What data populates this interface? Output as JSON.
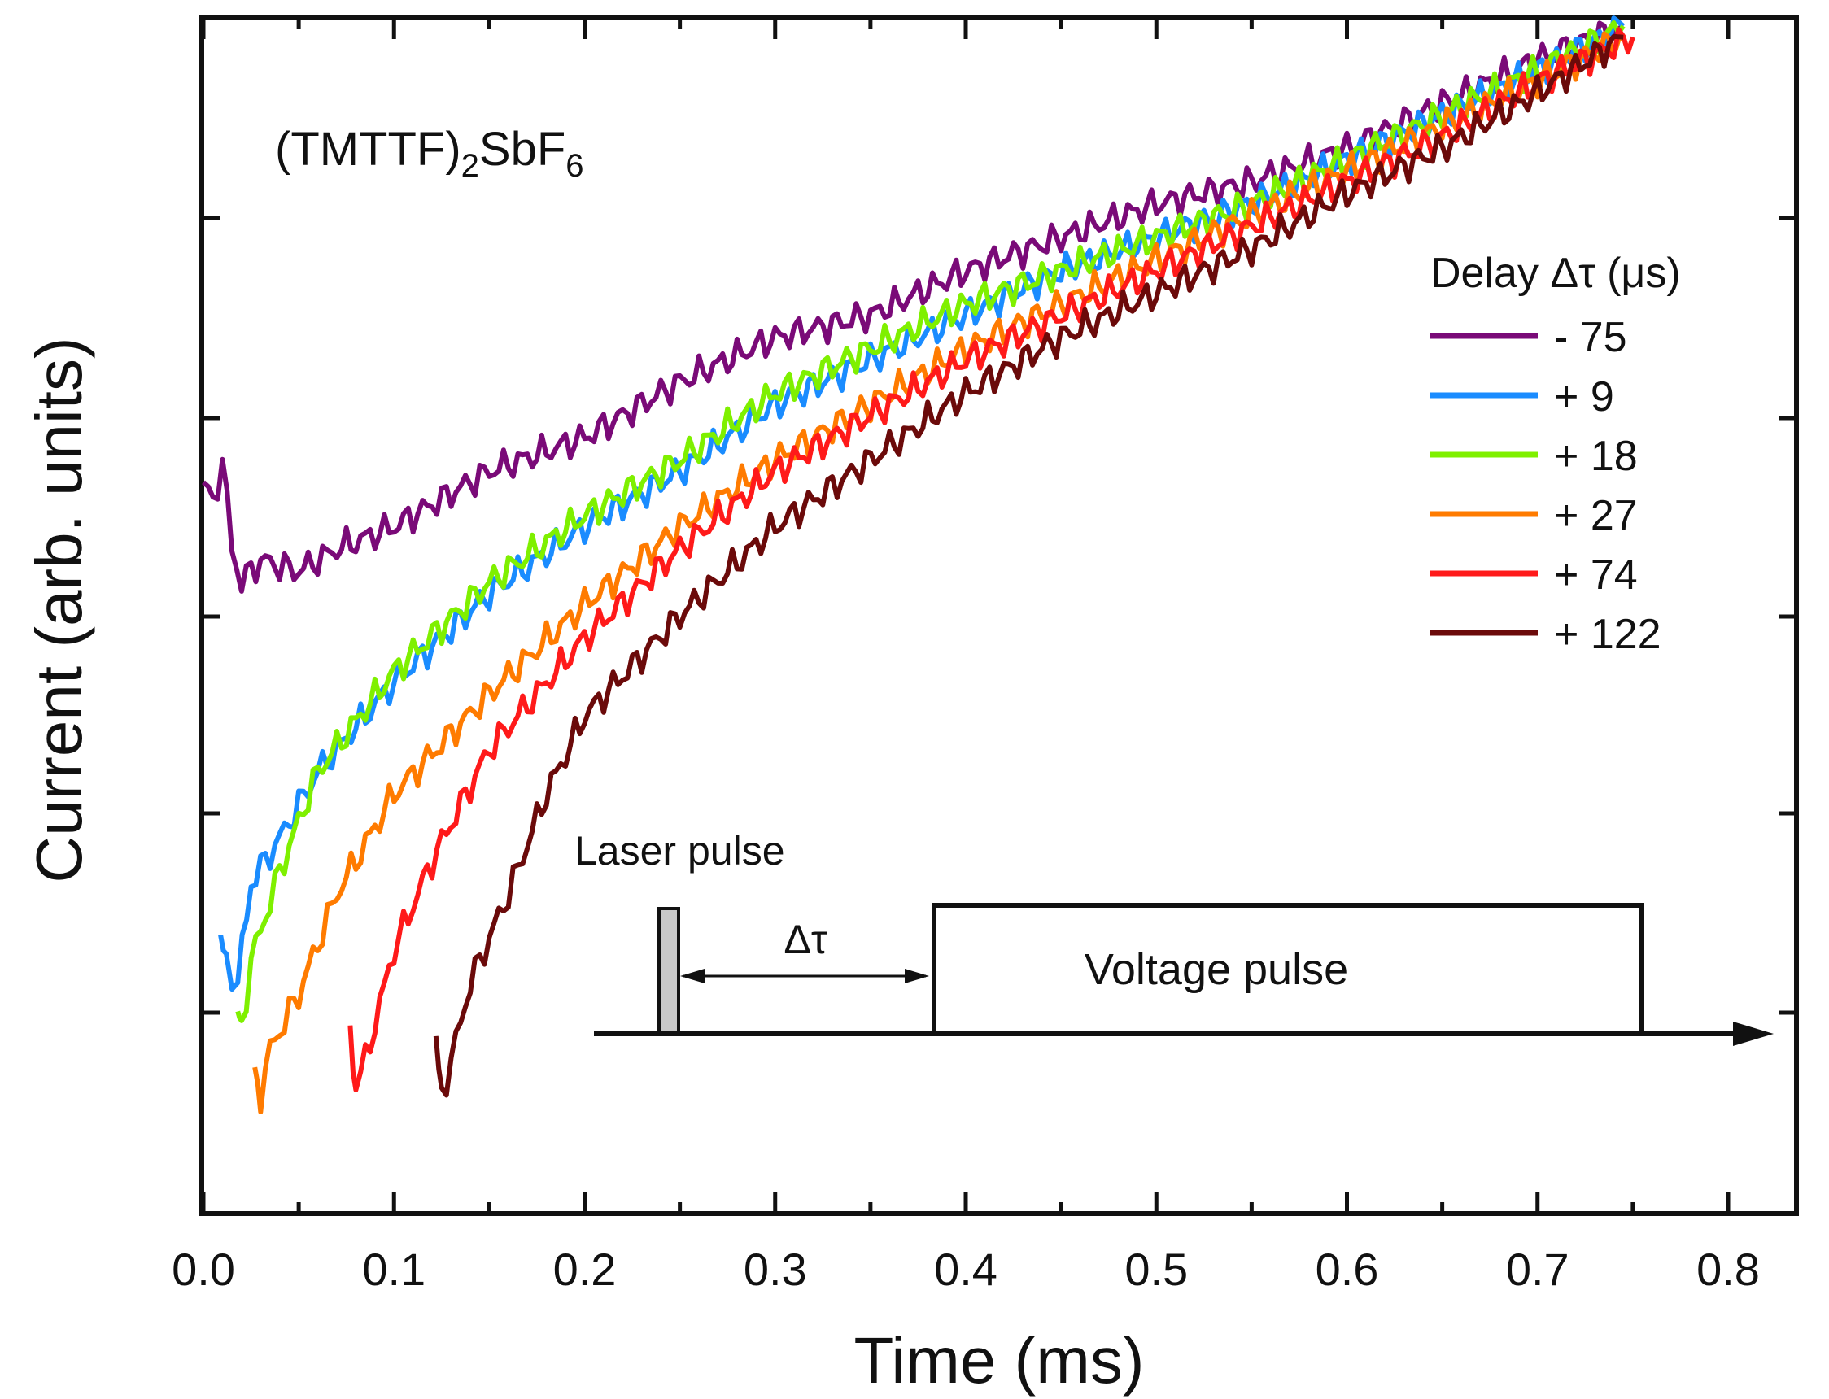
{
  "chart_data": {
    "type": "line",
    "title": "",
    "xlabel": "Time (ms)",
    "ylabel": "Current (arb. units)",
    "xlim": [
      0.0,
      0.85
    ],
    "ylim": [
      0.0,
      1.0
    ],
    "y_tick_labels_shown": false,
    "x_ticks": [
      "0.0",
      "0.1",
      "0.2",
      "0.3",
      "0.4",
      "0.5",
      "0.6",
      "0.7",
      "0.8"
    ],
    "sample_label": {
      "main": "(TMTTF)",
      "sub1": "2",
      "mid": "SbF",
      "sub2": "6"
    },
    "legend": {
      "title": "Delay Δτ (μs)",
      "position": "right"
    },
    "series": [
      {
        "name": "- 75",
        "color": "#7a0a78",
        "points": [
          [
            0.0,
            0.59
          ],
          [
            0.005,
            0.57
          ],
          [
            0.01,
            0.61
          ],
          [
            0.015,
            0.53
          ],
          [
            0.02,
            0.5
          ],
          [
            0.03,
            0.52
          ],
          [
            0.05,
            0.51
          ],
          [
            0.07,
            0.53
          ],
          [
            0.1,
            0.55
          ],
          [
            0.15,
            0.6
          ],
          [
            0.2,
            0.63
          ],
          [
            0.25,
            0.68
          ],
          [
            0.3,
            0.72
          ],
          [
            0.35,
            0.74
          ],
          [
            0.4,
            0.78
          ],
          [
            0.45,
            0.81
          ],
          [
            0.5,
            0.84
          ],
          [
            0.55,
            0.86
          ],
          [
            0.6,
            0.89
          ],
          [
            0.65,
            0.93
          ],
          [
            0.7,
            0.97
          ],
          [
            0.745,
            1.0
          ]
        ]
      },
      {
        "name": "+ 9",
        "color": "#1a8cff",
        "points": [
          [
            0.009,
            0.17
          ],
          [
            0.012,
            0.16
          ],
          [
            0.018,
            0.14
          ],
          [
            0.025,
            0.23
          ],
          [
            0.04,
            0.27
          ],
          [
            0.06,
            0.33
          ],
          [
            0.1,
            0.41
          ],
          [
            0.15,
            0.49
          ],
          [
            0.2,
            0.55
          ],
          [
            0.25,
            0.6
          ],
          [
            0.3,
            0.66
          ],
          [
            0.35,
            0.7
          ],
          [
            0.4,
            0.74
          ],
          [
            0.45,
            0.78
          ],
          [
            0.5,
            0.81
          ],
          [
            0.55,
            0.84
          ],
          [
            0.6,
            0.88
          ],
          [
            0.65,
            0.92
          ],
          [
            0.7,
            0.96
          ],
          [
            0.745,
            1.0
          ]
        ]
      },
      {
        "name": "+ 18",
        "color": "#7ff000",
        "points": [
          [
            0.018,
            0.11
          ],
          [
            0.02,
            0.1
          ],
          [
            0.025,
            0.16
          ],
          [
            0.04,
            0.24
          ],
          [
            0.06,
            0.33
          ],
          [
            0.1,
            0.42
          ],
          [
            0.15,
            0.5
          ],
          [
            0.2,
            0.56
          ],
          [
            0.25,
            0.61
          ],
          [
            0.3,
            0.67
          ],
          [
            0.35,
            0.71
          ],
          [
            0.4,
            0.75
          ],
          [
            0.45,
            0.78
          ],
          [
            0.5,
            0.81
          ],
          [
            0.55,
            0.84
          ],
          [
            0.6,
            0.88
          ],
          [
            0.65,
            0.92
          ],
          [
            0.7,
            0.96
          ],
          [
            0.745,
            1.0
          ]
        ]
      },
      {
        "name": "+ 27",
        "color": "#ff7b00",
        "points": [
          [
            0.027,
            0.06
          ],
          [
            0.03,
            0.04
          ],
          [
            0.035,
            0.08
          ],
          [
            0.05,
            0.13
          ],
          [
            0.07,
            0.22
          ],
          [
            0.1,
            0.31
          ],
          [
            0.15,
            0.4
          ],
          [
            0.2,
            0.48
          ],
          [
            0.25,
            0.55
          ],
          [
            0.3,
            0.61
          ],
          [
            0.35,
            0.66
          ],
          [
            0.4,
            0.71
          ],
          [
            0.45,
            0.75
          ],
          [
            0.5,
            0.79
          ],
          [
            0.55,
            0.83
          ],
          [
            0.6,
            0.87
          ],
          [
            0.65,
            0.91
          ],
          [
            0.7,
            0.95
          ],
          [
            0.745,
            0.99
          ]
        ]
      },
      {
        "name": "+ 74",
        "color": "#ff1a1a",
        "points": [
          [
            0.077,
            0.1
          ],
          [
            0.08,
            0.05
          ],
          [
            0.085,
            0.07
          ],
          [
            0.1,
            0.17
          ],
          [
            0.12,
            0.25
          ],
          [
            0.15,
            0.35
          ],
          [
            0.2,
            0.45
          ],
          [
            0.25,
            0.53
          ],
          [
            0.3,
            0.6
          ],
          [
            0.35,
            0.65
          ],
          [
            0.4,
            0.7
          ],
          [
            0.45,
            0.74
          ],
          [
            0.5,
            0.78
          ],
          [
            0.55,
            0.82
          ],
          [
            0.6,
            0.86
          ],
          [
            0.65,
            0.9
          ],
          [
            0.7,
            0.95
          ],
          [
            0.75,
            0.99
          ]
        ]
      },
      {
        "name": "+ 122",
        "color": "#6b0a0a",
        "points": [
          [
            0.122,
            0.08
          ],
          [
            0.125,
            0.04
          ],
          [
            0.13,
            0.07
          ],
          [
            0.14,
            0.14
          ],
          [
            0.16,
            0.22
          ],
          [
            0.18,
            0.31
          ],
          [
            0.2,
            0.38
          ],
          [
            0.25,
            0.47
          ],
          [
            0.3,
            0.55
          ],
          [
            0.35,
            0.61
          ],
          [
            0.4,
            0.67
          ],
          [
            0.45,
            0.72
          ],
          [
            0.5,
            0.76
          ],
          [
            0.55,
            0.8
          ],
          [
            0.6,
            0.85
          ],
          [
            0.65,
            0.89
          ],
          [
            0.7,
            0.94
          ],
          [
            0.745,
            0.99
          ]
        ]
      }
    ],
    "inset": {
      "laser_label": "Laser pulse",
      "delay_label": "Δτ",
      "voltage_label": "Voltage pulse"
    }
  }
}
